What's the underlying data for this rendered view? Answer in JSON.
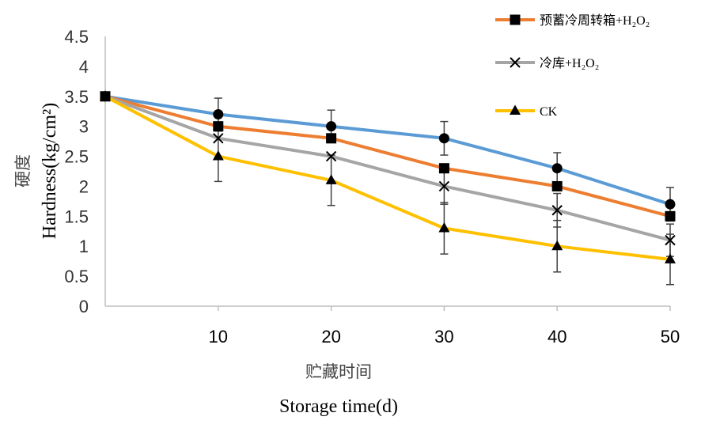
{
  "chart_data": {
    "type": "line",
    "x": [
      0,
      10,
      20,
      30,
      40,
      50
    ],
    "xlim": [
      0,
      50
    ],
    "ylim": [
      0,
      4.5
    ],
    "x_ticks": [
      "10",
      "20",
      "30",
      "40",
      "50"
    ],
    "y_ticks": [
      "0",
      "0.5",
      "1",
      "1.5",
      "2",
      "2.5",
      "3",
      "3.5",
      "4",
      "4.5"
    ],
    "xlabel_cn": "贮藏时间",
    "xlabel_en": "Storage time(d)",
    "ylabel_cn": "硬度",
    "ylabel_en": "Hardness(kg/cm²)",
    "grid": false,
    "legend_position": "top-right",
    "series": [
      {
        "key": "s1",
        "legend_label": "",
        "color": "#5B9BD5",
        "marker": "circle",
        "values": [
          3.5,
          3.2,
          3.0,
          2.8,
          2.3,
          1.7
        ],
        "error": [
          0,
          0.27,
          0.27,
          0.28,
          0.26,
          0.28
        ]
      },
      {
        "key": "s2",
        "name": "预蓄冷周转箱+H₂O₂",
        "color": "#ED7D31",
        "marker": "square",
        "values": [
          3.5,
          3.0,
          2.8,
          2.3,
          2.0,
          1.5
        ],
        "error": [
          0,
          0,
          0,
          0,
          0,
          0
        ]
      },
      {
        "key": "s3",
        "name": "冷库+H₂O₂",
        "color": "#A5A5A5",
        "marker": "x",
        "values": [
          3.5,
          2.8,
          2.5,
          2.0,
          1.6,
          1.1
        ],
        "error": [
          0,
          0,
          0,
          0.3,
          0.28,
          0.27
        ]
      },
      {
        "key": "s4",
        "name": "CK",
        "color": "#FFC000",
        "marker": "triangle",
        "values": [
          3.5,
          2.5,
          2.1,
          1.3,
          1.0,
          0.78
        ],
        "error": [
          0,
          0.42,
          0.42,
          0.43,
          0.43,
          0.42
        ]
      }
    ]
  }
}
